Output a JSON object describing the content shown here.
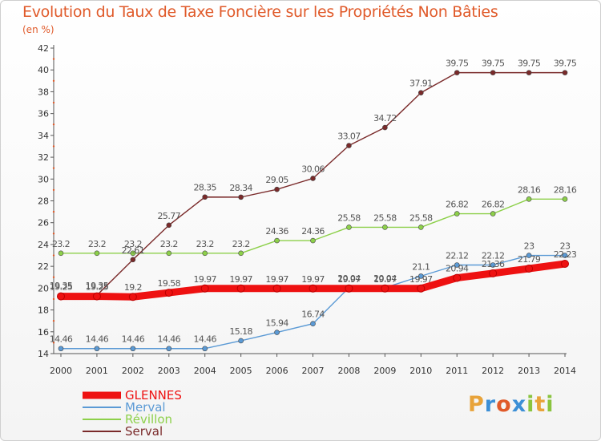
{
  "title": "Evolution du Taux de Taxe Foncière sur les Propriétés Non Bâties",
  "unit_label": "(en %)",
  "logo": {
    "text": "Proxiti",
    "colors": [
      "#e8a33a",
      "#3c8fd6",
      "#e05a2a",
      "#3c8fd6",
      "#8ac43f",
      "#e8a33a",
      "#8ac43f"
    ]
  },
  "chart_data": {
    "type": "line",
    "x": [
      "2000",
      "2001",
      "2002",
      "2003",
      "2004",
      "2005",
      "2006",
      "2007",
      "2008",
      "2009",
      "2010",
      "2011",
      "2012",
      "2013",
      "2014"
    ],
    "ylim": [
      14,
      42
    ],
    "yticks": [
      "14",
      "16",
      "18",
      "20",
      "22",
      "24",
      "26",
      "28",
      "30",
      "32",
      "34",
      "36",
      "38",
      "40",
      "42"
    ],
    "grid": false,
    "legend_position": "bottom-left",
    "series": [
      {
        "name": "GLENNES",
        "color": "#ee1111",
        "values": [
          19.25,
          19.25,
          19.2,
          19.58,
          19.97,
          19.97,
          19.97,
          19.97,
          19.97,
          19.97,
          19.97,
          20.94,
          21.36,
          21.79,
          22.23
        ],
        "labels": [
          "19.25",
          "19.25",
          "19.2",
          "19.58",
          "19.97",
          "19.97",
          "19.97",
          "19.97",
          "19.97",
          "19.97",
          "19.97",
          "20.94",
          "21.36",
          "21.79",
          "22.23"
        ]
      },
      {
        "name": "Merval",
        "color": "#5b9ad5",
        "values": [
          14.46,
          14.46,
          14.46,
          14.46,
          14.46,
          15.18,
          15.94,
          16.74,
          20.04,
          20.04,
          21.1,
          22.12,
          22.12,
          23,
          23
        ],
        "labels": [
          "14.46",
          "14.46",
          "14.46",
          "14.46",
          "14.46",
          "15.18",
          "15.94",
          "16.74",
          "20.04",
          "20.04",
          "21.1",
          "22.12",
          "22.12",
          "23",
          "23"
        ]
      },
      {
        "name": "Révillon",
        "color": "#8dd04a",
        "values": [
          23.2,
          23.2,
          23.2,
          23.2,
          23.2,
          23.2,
          24.36,
          24.36,
          25.58,
          25.58,
          25.58,
          26.82,
          26.82,
          28.16,
          28.16
        ],
        "labels": [
          "23.2",
          "23.2",
          "23.2",
          "23.2",
          "23.2",
          "23.2",
          "24.36",
          "24.36",
          "25.58",
          "25.58",
          "25.58",
          "26.82",
          "26.82",
          "28.16",
          "28.16"
        ]
      },
      {
        "name": "Serval",
        "color": "#7a2a2a",
        "values": [
          19.35,
          19.35,
          22.61,
          25.77,
          28.35,
          28.34,
          29.05,
          30.06,
          33.07,
          34.72,
          37.91,
          39.75,
          39.75,
          39.75,
          39.75
        ],
        "labels": [
          "19.35",
          "19.35",
          "22.61",
          "25.77",
          "28.35",
          "28.34",
          "29.05",
          "30.06",
          "33.07",
          "34.72",
          "37.91",
          "39.75",
          "39.75",
          "39.75",
          "39.75"
        ]
      }
    ]
  }
}
